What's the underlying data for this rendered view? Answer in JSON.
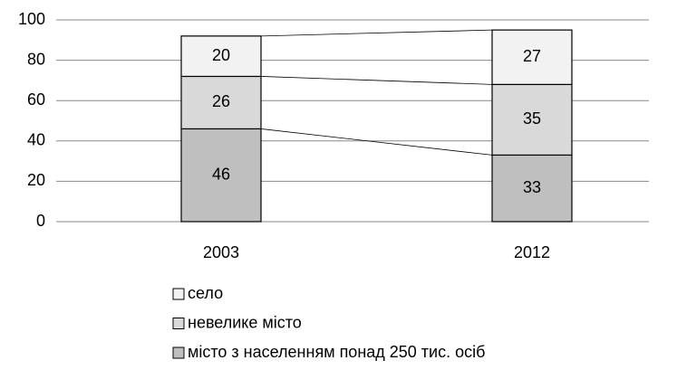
{
  "chart_data": {
    "type": "stacked_bar",
    "categories": [
      "2003",
      "2012"
    ],
    "series": [
      {
        "name": "місто з населенням понад 250 тис. осіб",
        "color": "#bfbfbf",
        "values": [
          46,
          33
        ]
      },
      {
        "name": "невелике місто",
        "color": "#d9d9d9",
        "values": [
          26,
          35
        ]
      },
      {
        "name": "село",
        "color": "#f2f2f2",
        "values": [
          20,
          27
        ]
      }
    ],
    "ylim": [
      0,
      100
    ],
    "yticks": [
      0,
      20,
      40,
      60,
      80,
      100
    ],
    "grid": true
  }
}
